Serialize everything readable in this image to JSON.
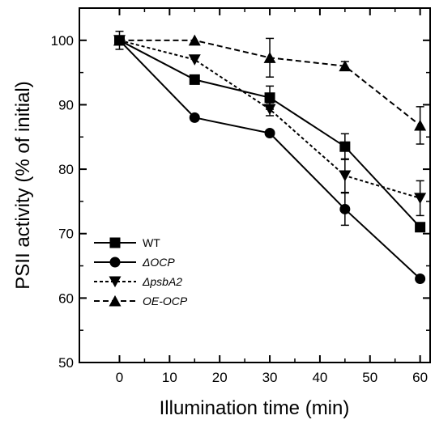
{
  "chart_data": {
    "type": "line",
    "xlabel": "Illumination time (min)",
    "ylabel": "PSII activity (% of initial)",
    "xlim": [
      -8,
      62
    ],
    "ylim": [
      50,
      105
    ],
    "xticks": [
      0,
      10,
      20,
      30,
      40,
      50,
      60
    ],
    "yticks": [
      50,
      60,
      70,
      80,
      90,
      100
    ],
    "grid": false,
    "legend_position": "lower-left",
    "series": [
      {
        "name": "WT",
        "italic": false,
        "marker": "square",
        "line_style": "solid",
        "color": "#000000",
        "x": [
          0,
          15,
          30,
          45,
          60
        ],
        "y": [
          100,
          93.9,
          91.1,
          83.5,
          71.0
        ],
        "error": [
          0,
          0.6,
          1.8,
          2.0,
          0.6
        ]
      },
      {
        "name": "ΔOCP",
        "italic": true,
        "marker": "circle",
        "line_style": "solid",
        "color": "#000000",
        "x": [
          0,
          15,
          30,
          45,
          60
        ],
        "y": [
          100,
          88.0,
          85.6,
          73.8,
          63.0
        ],
        "error": [
          0,
          0,
          0,
          2.5,
          0
        ]
      },
      {
        "name": "ΔpsbA2",
        "italic": true,
        "marker": "triangle-down",
        "line_style": "dotted",
        "color": "#000000",
        "x": [
          0,
          15,
          30,
          45,
          60
        ],
        "y": [
          100,
          97.0,
          89.3,
          79.0,
          75.5
        ],
        "error": [
          0,
          0,
          1.0,
          2.6,
          2.7
        ]
      },
      {
        "name": "OE-OCP",
        "italic": true,
        "marker": "triangle-up",
        "line_style": "dashed",
        "color": "#000000",
        "x": [
          0,
          15,
          30,
          45,
          60
        ],
        "y": [
          100,
          100,
          97.3,
          96.0,
          86.8
        ],
        "error": [
          1.4,
          0,
          3.0,
          0.7,
          2.9
        ]
      }
    ]
  }
}
